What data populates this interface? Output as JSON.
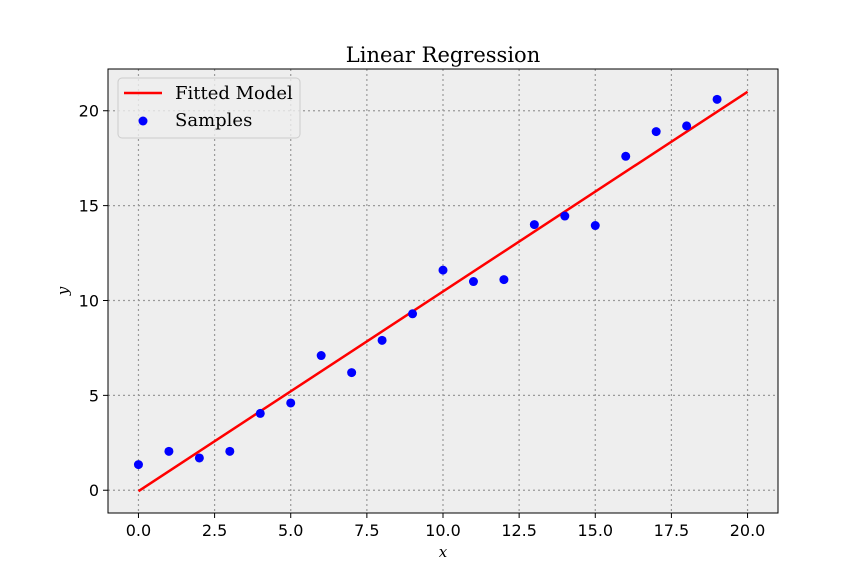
{
  "chart_data": {
    "type": "scatter",
    "title": "Linear Regression",
    "xlabel": "x",
    "ylabel": "y",
    "xlim": [
      -1.0,
      21.0
    ],
    "ylim": [
      -1.2,
      22.2
    ],
    "xticks": [
      0.0,
      2.5,
      5.0,
      7.5,
      10.0,
      12.5,
      15.0,
      17.5,
      20.0
    ],
    "xtick_labels": [
      "0.0",
      "2.5",
      "5.0",
      "7.5",
      "10.0",
      "12.5",
      "15.0",
      "17.5",
      "20.0"
    ],
    "yticks": [
      0,
      5,
      10,
      15,
      20
    ],
    "ytick_labels": [
      "0",
      "5",
      "10",
      "15",
      "20"
    ],
    "grid": true,
    "legend_position": "top-left",
    "background": "#eeeeee",
    "series": [
      {
        "name": "Fitted Model",
        "kind": "line",
        "color": "#ff0000",
        "x": [
          0.0,
          20.0
        ],
        "y": [
          -0.05,
          21.0
        ]
      },
      {
        "name": "Samples",
        "kind": "scatter",
        "color": "#0000ff",
        "x": [
          0,
          1,
          2,
          3,
          4,
          5,
          6,
          7,
          8,
          9,
          10,
          11,
          12,
          13,
          14,
          15,
          16,
          17,
          18,
          19
        ],
        "y": [
          1.35,
          2.05,
          1.7,
          2.05,
          4.05,
          4.6,
          7.1,
          6.2,
          7.9,
          9.3,
          11.6,
          11.0,
          11.1,
          14.0,
          14.45,
          13.95,
          17.6,
          18.9,
          19.2,
          20.6
        ]
      }
    ]
  }
}
